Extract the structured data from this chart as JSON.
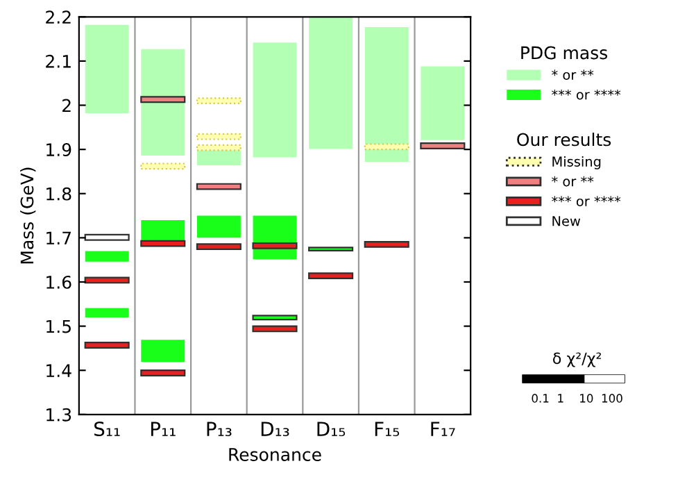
{
  "chart_data": {
    "type": "bar",
    "xlabel": "Resonance",
    "ylabel": "Mass (GeV)",
    "categories": [
      "S₁₁",
      "P₁₁",
      "P₁₃",
      "D₁₃",
      "D₁₅",
      "F₁₅",
      "F₁₇"
    ],
    "ylim": [
      1.3,
      2.2
    ],
    "yticks": [
      1.3,
      1.4,
      1.5,
      1.6,
      1.7,
      1.8,
      1.9,
      2,
      2.1,
      2.2
    ],
    "legend": "right",
    "grid": false,
    "annotations": [
      "PDG mass",
      "Our results",
      "δ χ²/χ²",
      "0.1  1    10  100"
    ],
    "series": [
      {
        "name": "* or **",
        "color": "#b3ffb3",
        "base": [
          1.982,
          1.886,
          1.864,
          1.882,
          1.901,
          1.872,
          1.921
        ],
        "values": [
          0.2,
          0.241,
          0.037,
          0.26,
          0.299,
          0.305,
          0.167
        ]
      },
      {
        "name": "*** or ****",
        "color": "#1aff1a",
        "base": [
          1.646,
          1.687,
          1.7,
          1.651,
          1.671,
          null,
          null
        ],
        "values": [
          0.024,
          0.053,
          0.05,
          0.099,
          0.007,
          null,
          null
        ]
      },
      {
        "color": "#1aff1a",
        "base": [
          1.52,
          1.419,
          null,
          1.515,
          null,
          null,
          null
        ],
        "values": [
          0.021,
          0.05,
          null,
          0.009,
          null,
          null,
          null
        ]
      },
      {
        "name": "Missing",
        "color": "#ffffb0",
        "base": [
          null,
          1.856,
          2.004,
          null,
          null,
          1.9,
          null
        ],
        "values": [
          null,
          0.012,
          0.012,
          null,
          null,
          0.012,
          null
        ]
      },
      {
        "color": "#ffffb0",
        "base": [
          null,
          null,
          1.923,
          null,
          null,
          null,
          null
        ],
        "values": [
          null,
          null,
          0.012,
          null,
          null,
          null,
          null
        ]
      },
      {
        "color": "#ffffb0",
        "base": [
          null,
          null,
          1.898,
          null,
          null,
          null,
          null
        ],
        "values": [
          null,
          null,
          0.012,
          null,
          null,
          null,
          null
        ]
      },
      {
        "name": "* or **",
        "color": "#f08080",
        "base": [
          null,
          2.007,
          1.81,
          null,
          null,
          null,
          1.902
        ],
        "values": [
          null,
          0.012,
          0.012,
          null,
          null,
          null,
          0.012
        ]
      },
      {
        "name": "*** or ****",
        "color": "#e82020",
        "base": [
          1.598,
          1.681,
          1.674,
          1.676,
          1.608,
          1.679,
          null
        ],
        "values": [
          0.012,
          0.012,
          0.012,
          0.012,
          0.012,
          0.012,
          null
        ]
      },
      {
        "color": "#e82020",
        "base": [
          1.451,
          1.388,
          null,
          1.488,
          null,
          null,
          null
        ],
        "values": [
          0.012,
          0.012,
          null,
          0.012,
          null,
          null,
          null
        ]
      },
      {
        "name": "New",
        "color": "#ffffff",
        "base": [
          1.695,
          null,
          null,
          null,
          null,
          null,
          null
        ],
        "values": [
          0.012,
          null,
          null,
          null,
          null,
          null,
          null
        ]
      }
    ]
  }
}
